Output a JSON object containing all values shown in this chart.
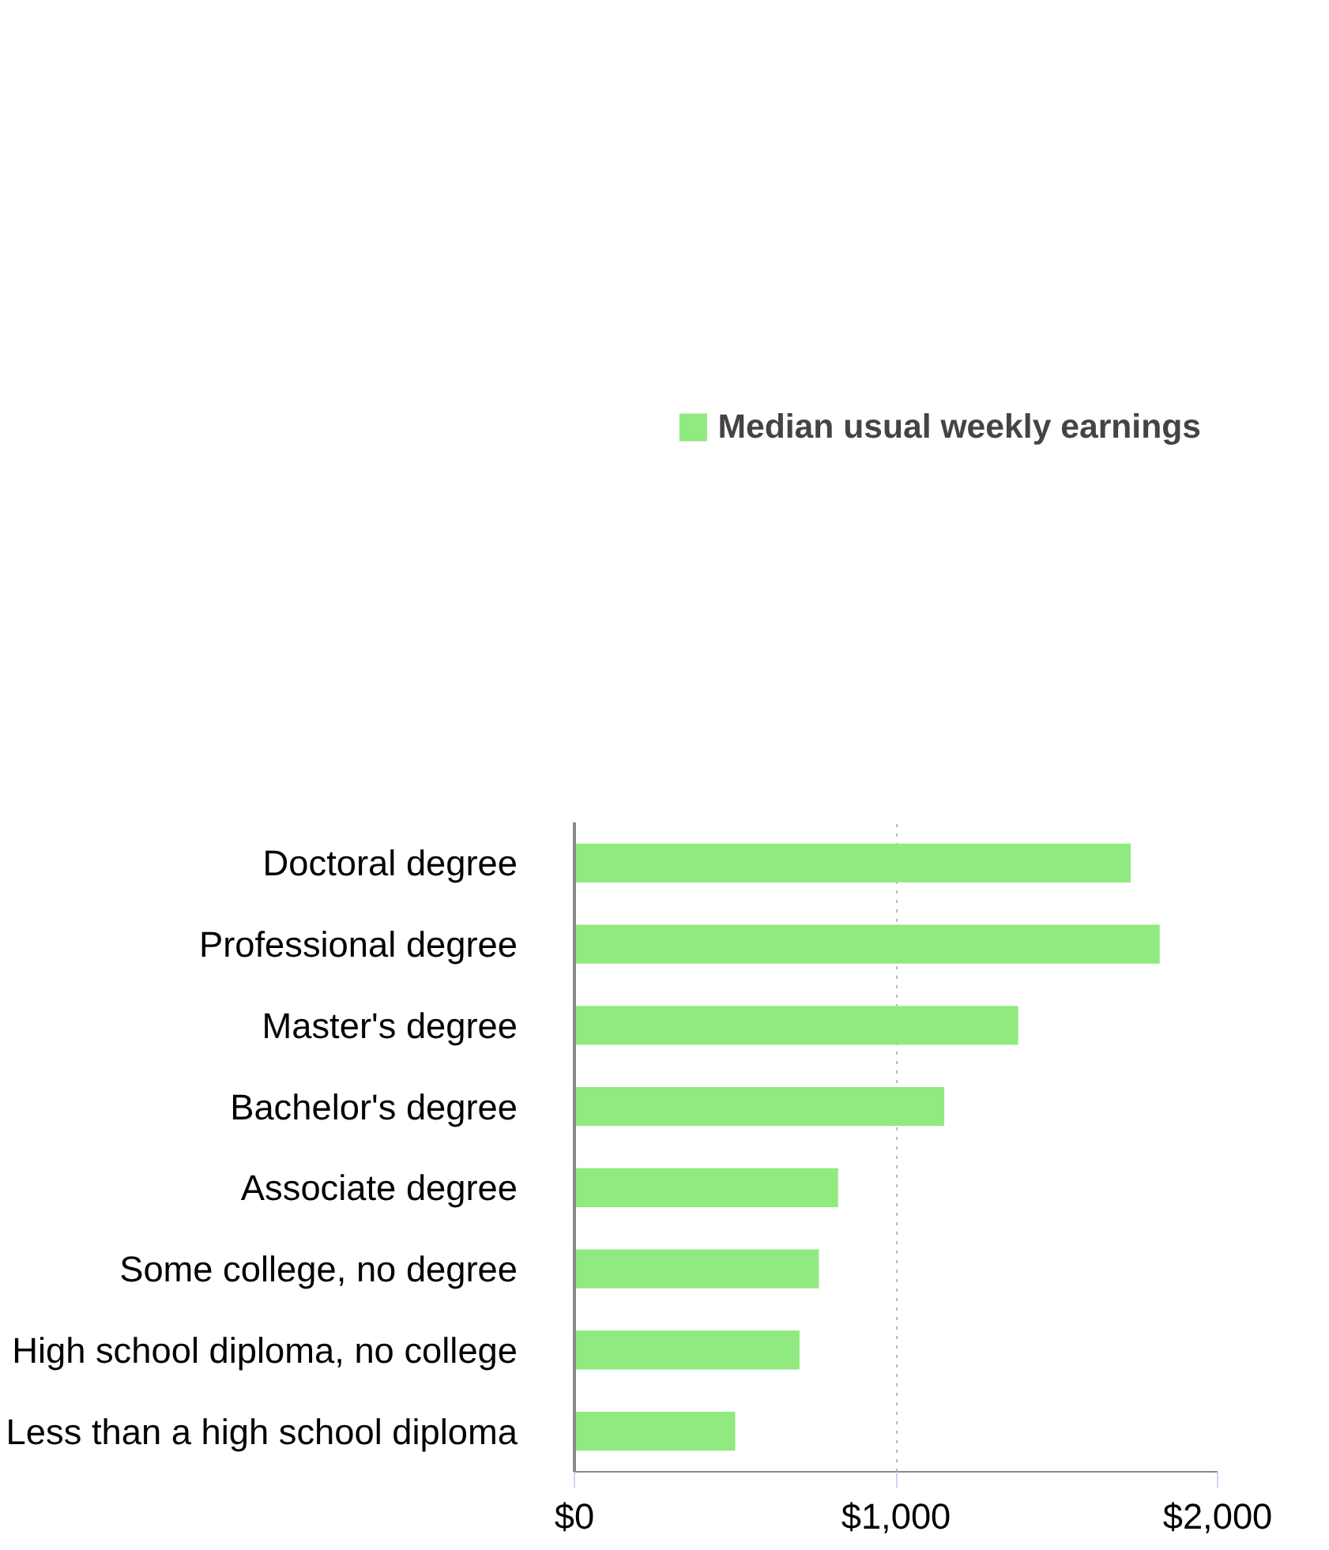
{
  "chart_data": {
    "type": "bar",
    "orientation": "horizontal",
    "categories": [
      "Doctoral degree",
      "Professional degree",
      "Master's degree",
      "Bachelor's degree",
      "Associate degree",
      "Some college, no degree",
      "High school diploma, no college",
      "Less than a high school diploma"
    ],
    "series": [
      {
        "name": "Median usual weekly earnings",
        "color": "#90ea7f",
        "values": [
          1730,
          1820,
          1380,
          1150,
          820,
          760,
          700,
          500
        ]
      }
    ],
    "xlim": [
      0,
      2000
    ],
    "xticks": [
      {
        "value": 0,
        "label": "$0"
      },
      {
        "value": 1000,
        "label": "$1,000"
      },
      {
        "value": 2000,
        "label": "$2,000"
      }
    ],
    "grid": "x",
    "legend": "top"
  }
}
